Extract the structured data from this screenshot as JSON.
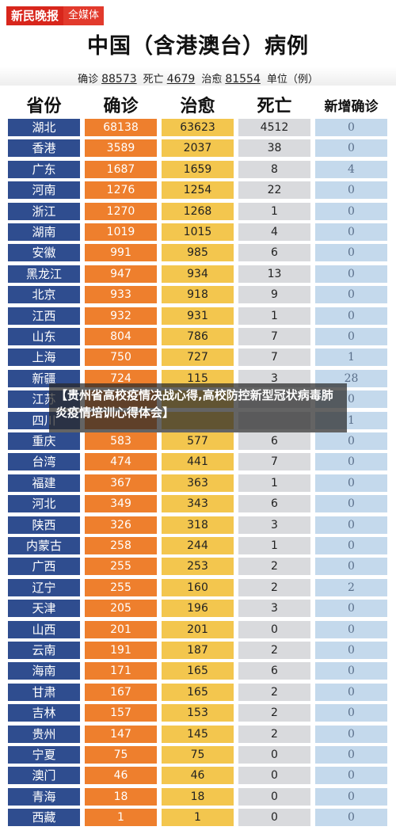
{
  "brand": {
    "name": "新民晚报",
    "sub": "全媒体"
  },
  "title": "中国（含港澳台）病例",
  "summary": {
    "confirmed_label": "确诊",
    "confirmed": "88573",
    "deaths_label": "死亡",
    "deaths": "4679",
    "recovered_label": "治愈",
    "recovered": "81554",
    "unit": "单位（例）"
  },
  "columns": [
    "省份",
    "确诊",
    "治愈",
    "死亡",
    "新增确诊"
  ],
  "rows": [
    [
      "湖北",
      "68138",
      "63623",
      "4512",
      "0"
    ],
    [
      "香港",
      "3589",
      "2037",
      "38",
      "0"
    ],
    [
      "广东",
      "1687",
      "1659",
      "8",
      "4"
    ],
    [
      "河南",
      "1276",
      "1254",
      "22",
      "0"
    ],
    [
      "浙江",
      "1270",
      "1268",
      "1",
      "0"
    ],
    [
      "湖南",
      "1019",
      "1015",
      "4",
      "0"
    ],
    [
      "安徽",
      "991",
      "985",
      "6",
      "0"
    ],
    [
      "黑龙江",
      "947",
      "934",
      "13",
      "0"
    ],
    [
      "北京",
      "933",
      "918",
      "9",
      "0"
    ],
    [
      "江西",
      "932",
      "931",
      "1",
      "0"
    ],
    [
      "山东",
      "804",
      "786",
      "7",
      "0"
    ],
    [
      "上海",
      "750",
      "727",
      "7",
      "1"
    ],
    [
      "新疆",
      "724",
      "115",
      "3",
      "28"
    ],
    [
      "江苏",
      "",
      "",
      "",
      "0"
    ],
    [
      "四川",
      "",
      "",
      "",
      "1"
    ],
    [
      "重庆",
      "583",
      "577",
      "6",
      "0"
    ],
    [
      "台湾",
      "474",
      "441",
      "7",
      "0"
    ],
    [
      "福建",
      "367",
      "363",
      "1",
      "0"
    ],
    [
      "河北",
      "349",
      "343",
      "6",
      "0"
    ],
    [
      "陕西",
      "326",
      "318",
      "3",
      "0"
    ],
    [
      "内蒙古",
      "258",
      "244",
      "1",
      "0"
    ],
    [
      "广西",
      "255",
      "253",
      "2",
      "0"
    ],
    [
      "辽宁",
      "255",
      "160",
      "2",
      "2"
    ],
    [
      "天津",
      "205",
      "196",
      "3",
      "0"
    ],
    [
      "山西",
      "201",
      "201",
      "0",
      "0"
    ],
    [
      "云南",
      "191",
      "187",
      "2",
      "0"
    ],
    [
      "海南",
      "171",
      "165",
      "6",
      "0"
    ],
    [
      "甘肃",
      "167",
      "165",
      "2",
      "0"
    ],
    [
      "吉林",
      "157",
      "153",
      "2",
      "0"
    ],
    [
      "贵州",
      "147",
      "145",
      "2",
      "0"
    ],
    [
      "宁夏",
      "75",
      "75",
      "0",
      "0"
    ],
    [
      "澳门",
      "46",
      "46",
      "0",
      "0"
    ],
    [
      "青海",
      "18",
      "18",
      "0",
      "0"
    ],
    [
      "西藏",
      "1",
      "1",
      "0",
      "0"
    ]
  ],
  "overlay_text": "【贵州省高校疫情决战心得,高校防控新型冠状病毒肺炎疫情培训心得体会】"
}
